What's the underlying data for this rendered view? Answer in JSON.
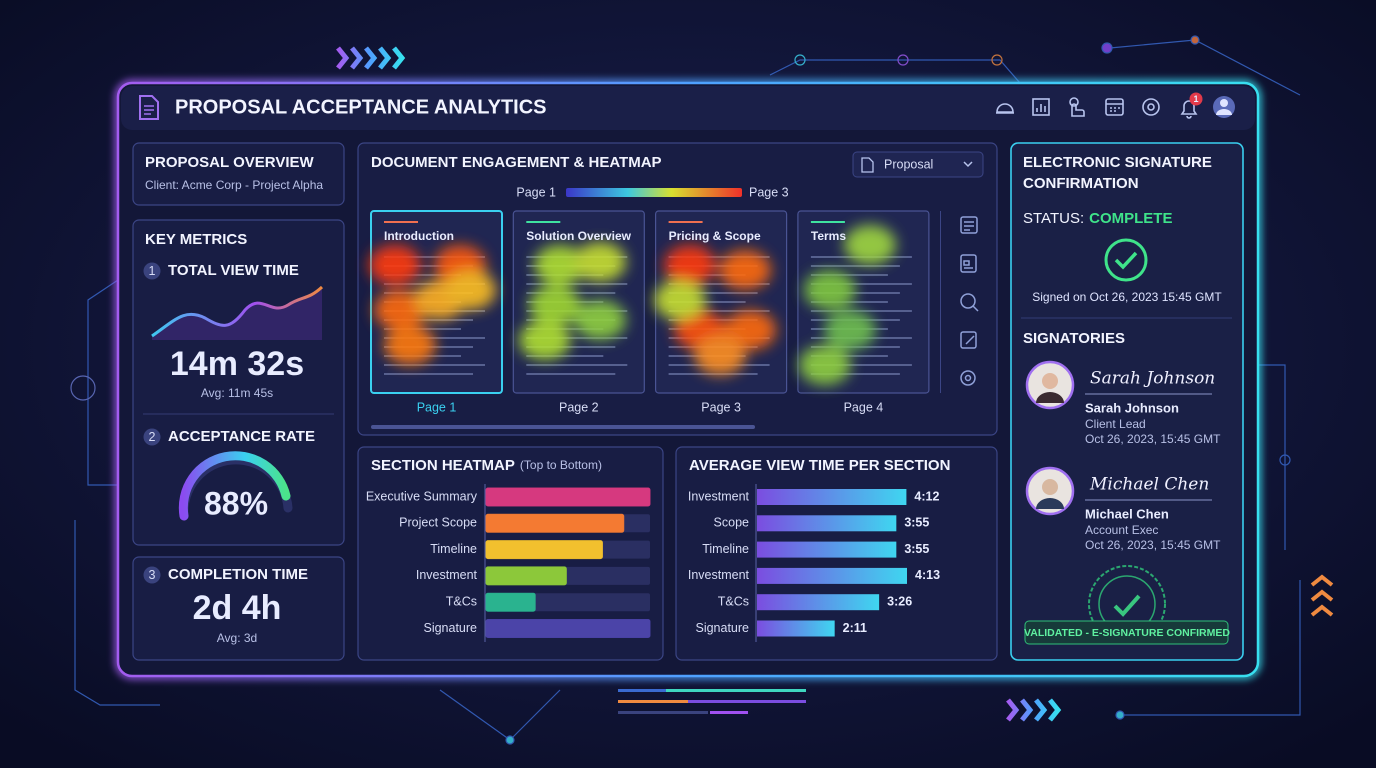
{
  "header": {
    "title": "PROPOSAL ACCEPTANCE ANALYTICS",
    "notification_count": "1"
  },
  "overview": {
    "title": "PROPOSAL OVERVIEW",
    "client": "Client: Acme Corp - Project Alpha"
  },
  "key_metrics": {
    "title": "KEY METRICS",
    "items": [
      {
        "number": "1",
        "label": "TOTAL VIEW TIME",
        "value": "14m 32s",
        "sub": "Avg: 11m 45s"
      },
      {
        "number": "2",
        "label": "ACCEPTANCE RATE",
        "value": "88%"
      },
      {
        "number": "3",
        "label": "COMPLETION TIME",
        "value": "2d 4h",
        "sub": "Avg: 3d"
      }
    ]
  },
  "engagement": {
    "title": "DOCUMENT ENGAGEMENT & HEATMAP",
    "dropdown": "Proposal",
    "legend_start": "Page 1",
    "legend_end": "Page 3",
    "pages": [
      {
        "heading": "Introduction",
        "label": "Page 1"
      },
      {
        "heading": "Solution Overview",
        "label": "Page 2"
      },
      {
        "heading": "Pricing & Scope",
        "label": "Page 3"
      },
      {
        "heading": "Terms",
        "label": "Page 4"
      }
    ]
  },
  "chart_data": [
    {
      "type": "bar",
      "orientation": "horizontal",
      "title": "SECTION HEATMAP",
      "subtitle": "(Top to Bottom)",
      "categories": [
        "Executive Summary",
        "Project Scope",
        "Timeline",
        "Investment",
        "T&Cs",
        "Signature"
      ],
      "values": [
        100,
        84,
        71,
        49,
        30,
        100
      ],
      "colors": [
        "#d6397f",
        "#f47a32",
        "#f2c02e",
        "#8cc83a",
        "#2ab38f",
        "#4b44a8"
      ]
    },
    {
      "type": "bar",
      "orientation": "horizontal",
      "title": "AVERAGE VIEW TIME PER SECTION",
      "categories": [
        "Investment",
        "Scope",
        "Timeline",
        "Investment",
        "T&Cs",
        "Signature"
      ],
      "values": [
        252,
        235,
        235,
        253,
        206,
        131
      ],
      "value_labels": [
        "4:12",
        "3:55",
        "3:55",
        "4:13",
        "3:26",
        "2:11"
      ],
      "colors": [
        "#7b4de0",
        "#3fd6f0"
      ]
    }
  ],
  "signature": {
    "title_line1": "ELECTRONIC SIGNATURE",
    "title_line2": "CONFIRMATION",
    "status_label": "STATUS:",
    "status": "COMPLETE",
    "signed_on": "Signed on Oct 26, 2023 15:45 GMT",
    "signatories_title": "SIGNATORIES",
    "signatories": [
      {
        "signature": "Sarah Johnson",
        "name": "Sarah Johnson",
        "role": "Client Lead",
        "date": "Oct 26, 2023, 15:45 GMT"
      },
      {
        "signature": "Michael Chen",
        "name": "Michael Chen",
        "role": "Account Exec",
        "date": "Oct 26, 2023, 15:45 GMT"
      }
    ],
    "badge": "VALIDATED - E-SIGNATURE CONFIRMED"
  }
}
